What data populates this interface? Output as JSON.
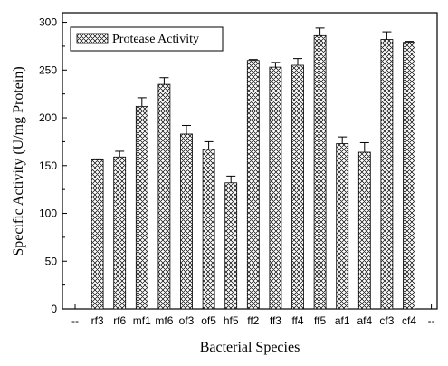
{
  "chart_data": {
    "type": "bar",
    "xlabel": "Bacterial Species",
    "ylabel": "Specific Activity (U/mg Protein)",
    "ylim": [
      0,
      310
    ],
    "yticks": [
      0,
      50,
      100,
      150,
      200,
      250,
      300
    ],
    "legend": {
      "position": "top-left",
      "label": "Protease Activity"
    },
    "bar_fill": "cross-hatch",
    "categories": [
      "--",
      "rf3",
      "rf6",
      "mf1",
      "mf6",
      "of3",
      "of5",
      "hf5",
      "ff2",
      "ff3",
      "ff4",
      "ff5",
      "af1",
      "af4",
      "cf3",
      "cf4",
      "--"
    ],
    "series": [
      {
        "name": "Protease Activity",
        "values": [
          null,
          156,
          159,
          212,
          235,
          183,
          167,
          132,
          260,
          253,
          255,
          286,
          173,
          164,
          282,
          279,
          null
        ],
        "errors": [
          null,
          1,
          6,
          9,
          7,
          9,
          8,
          7,
          1,
          5,
          7,
          8,
          7,
          10,
          8,
          1,
          null
        ]
      }
    ]
  }
}
